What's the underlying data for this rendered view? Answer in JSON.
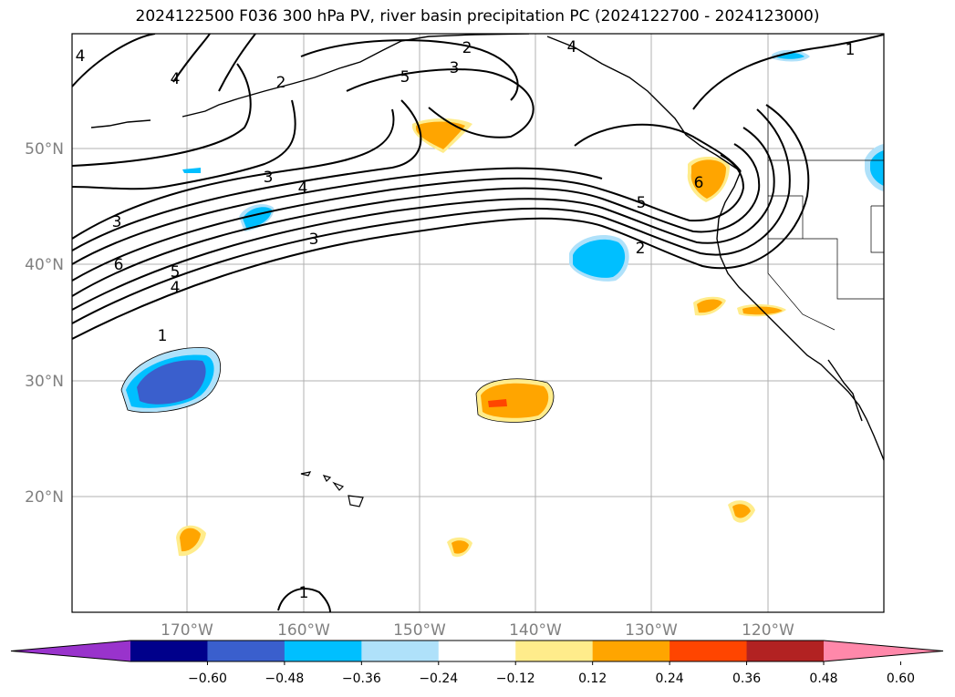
{
  "title": "2024122500 F036 300 hPa PV, river basin precipitation PC (2024122700 - 2024123000)",
  "map": {
    "lon_labels": [
      "170°W",
      "160°W",
      "150°W",
      "140°W",
      "130°W",
      "120°W"
    ],
    "lat_labels": [
      "50°N",
      "40°N",
      "30°N",
      "20°N"
    ],
    "grid": true
  },
  "contour_labels": [
    {
      "text": "4"
    },
    {
      "text": "4"
    },
    {
      "text": "2"
    },
    {
      "text": "5"
    },
    {
      "text": "2"
    },
    {
      "text": "3"
    },
    {
      "text": "4"
    },
    {
      "text": "1"
    },
    {
      "text": "3"
    },
    {
      "text": "4"
    },
    {
      "text": "3"
    },
    {
      "text": "3"
    },
    {
      "text": "6"
    },
    {
      "text": "5"
    },
    {
      "text": "4"
    },
    {
      "text": "1"
    },
    {
      "text": "6"
    },
    {
      "text": "5"
    },
    {
      "text": "2"
    },
    {
      "text": "1"
    }
  ],
  "colorbar": {
    "colors": [
      "#9933cc",
      "#00008b",
      "#3a5fcd",
      "#00bfff",
      "#afe1fa",
      "#ffffff",
      "#ffec8b",
      "#ffa500",
      "#ff4500",
      "#b22222",
      "#ff88aa"
    ],
    "tick_labels": [
      "−0.60",
      "−0.48",
      "−0.36",
      "−0.24",
      "−0.12",
      "0.12",
      "0.24",
      "0.36",
      "0.48",
      "0.60"
    ]
  }
}
